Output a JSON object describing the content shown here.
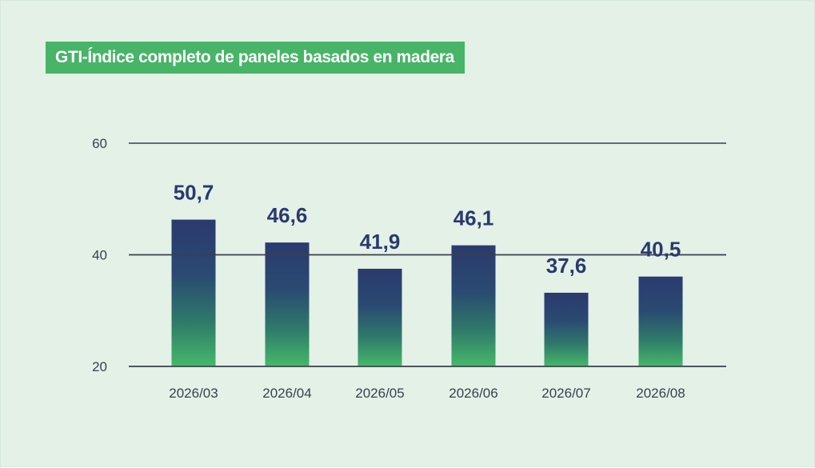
{
  "title": "GTI-Índice completo de paneles basados en madera",
  "colors": {
    "background": "#e3f1e7",
    "title_bg": "#47b467",
    "bar_top": "#2b3a6e",
    "bar_bottom": "#46b86a",
    "label": "#2a3a6e",
    "gridline": "#3a3f4d"
  },
  "chart_data": {
    "type": "bar",
    "title": "GTI-Índice completo de paneles basados en madera",
    "xlabel": "",
    "ylabel": "",
    "categories": [
      "2026/03",
      "2026/04",
      "2026/05",
      "2026/06",
      "2026/07",
      "2026/08"
    ],
    "values": [
      50.7,
      46.6,
      41.9,
      46.1,
      37.6,
      40.5
    ],
    "value_labels": [
      "50,7",
      "46,6",
      "41,9",
      "46,1",
      "37,6",
      "40,5"
    ],
    "ylim": [
      20,
      60
    ],
    "yticks": [
      20,
      40,
      60
    ],
    "ytick_labels": [
      "20",
      "40",
      "60"
    ],
    "grid": true,
    "legend": "none"
  }
}
